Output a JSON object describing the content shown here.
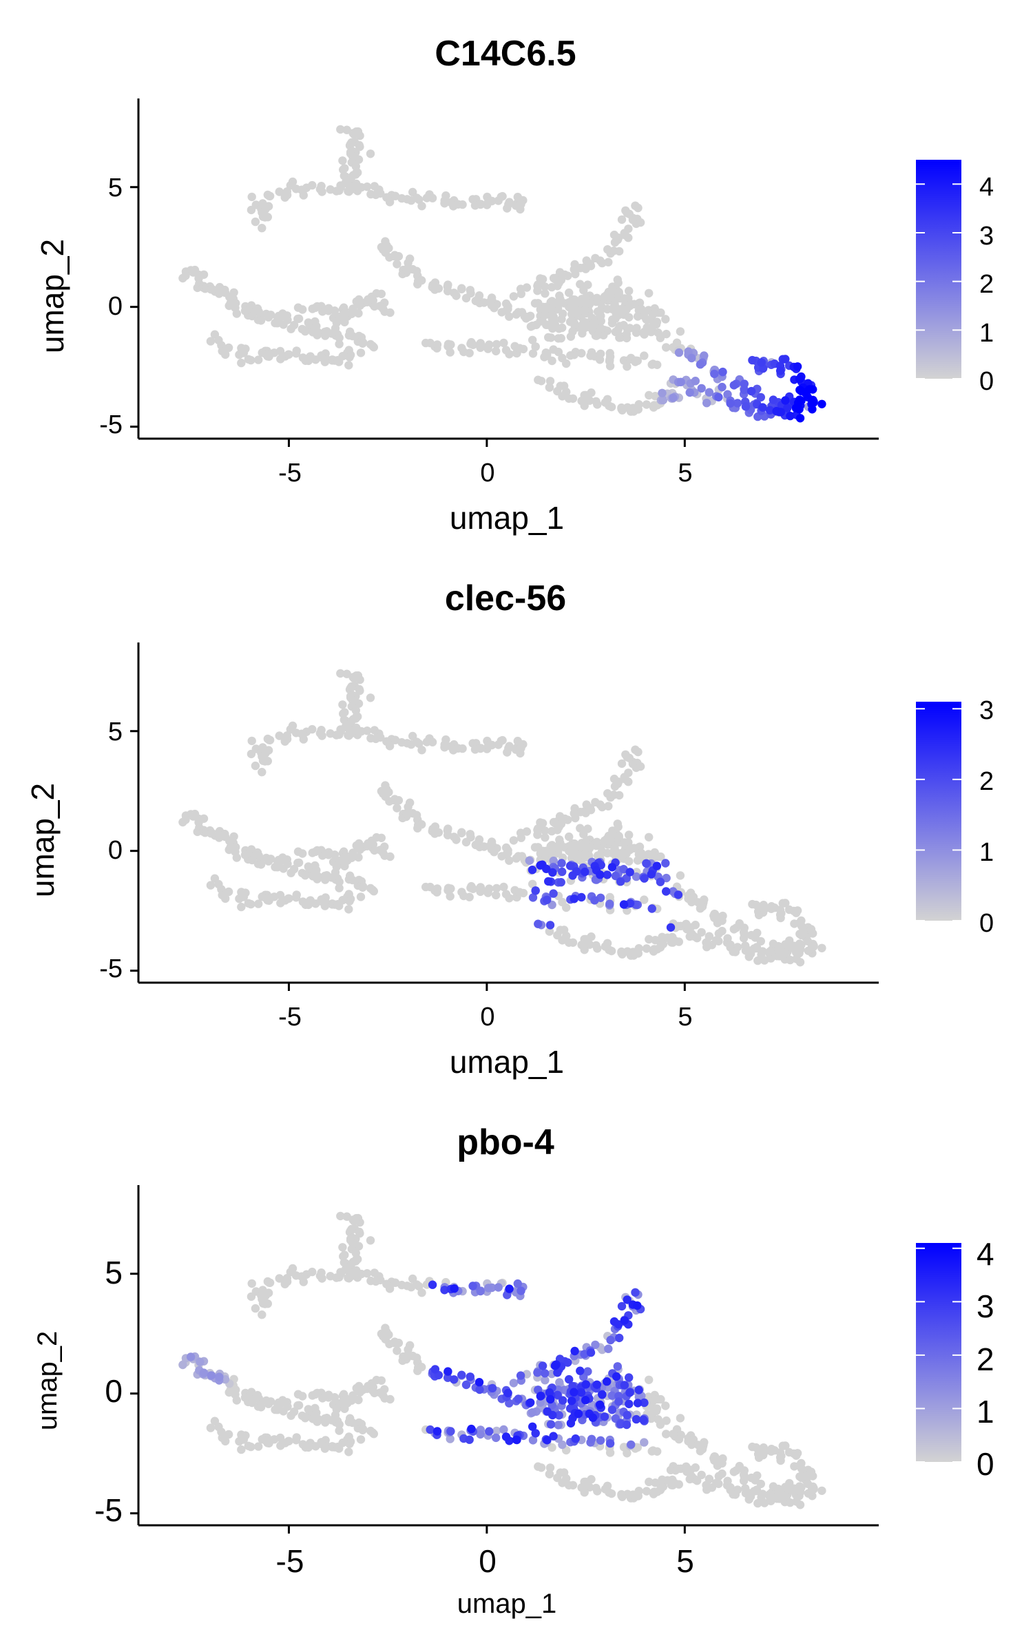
{
  "chart_data": [
    {
      "type": "scatter",
      "title": "C14C6.5",
      "xlabel": "umap_1",
      "ylabel": "umap_2",
      "xlim": [
        -8.8,
        9.9
      ],
      "ylim": [
        -5.5,
        8.7
      ],
      "xticks": [
        -5,
        0,
        5
      ],
      "yticks": [
        -5,
        0,
        5
      ],
      "xtick_labels": [
        "-5",
        "0",
        "5"
      ],
      "ytick_labels": [
        "-5",
        "0",
        "5"
      ],
      "grid": false,
      "legend": {
        "position": "right",
        "min": 0,
        "max": 4.5,
        "ticks": [
          0,
          1,
          2,
          3,
          4
        ],
        "tick_labels": [
          "0",
          "1",
          "2",
          "3",
          "4"
        ]
      },
      "colors": {
        "low": "#d3d3d3",
        "high": "#0000ff"
      },
      "highlight_region": "lower-right arc (umap_1 4.5 to 8.5, umap_2 -2 to -4.7)"
    },
    {
      "type": "scatter",
      "title": "clec-56",
      "xlabel": "umap_1",
      "ylabel": "umap_2",
      "xlim": [
        -8.8,
        9.9
      ],
      "ylim": [
        -5.5,
        8.7
      ],
      "xticks": [
        -5,
        0,
        5
      ],
      "yticks": [
        -5,
        0,
        5
      ],
      "xtick_labels": [
        "-5",
        "0",
        "5"
      ],
      "ytick_labels": [
        "-5",
        "0",
        "5"
      ],
      "grid": false,
      "legend": {
        "position": "right",
        "min": 0,
        "max": 3.1,
        "ticks": [
          0,
          1,
          2,
          3
        ],
        "tick_labels": [
          "0",
          "1",
          "2",
          "3"
        ]
      },
      "colors": {
        "low": "#d3d3d3",
        "high": "#0000ff"
      },
      "highlight_region": "central band (umap_1 1 to 5, umap_2 -0.5 to -3)"
    },
    {
      "type": "scatter",
      "title": "pbo-4",
      "xlabel": "umap_1",
      "ylabel": "umap_2",
      "xlim": [
        -8.8,
        9.9
      ],
      "ylim": [
        -5.5,
        8.7
      ],
      "xticks": [
        -5,
        0,
        5
      ],
      "yticks": [
        -5,
        0,
        5
      ],
      "xtick_labels": [
        "-5",
        "0",
        "5"
      ],
      "ytick_labels": [
        "-5",
        "0",
        "5"
      ],
      "grid": false,
      "legend": {
        "position": "right",
        "min": 0,
        "max": 4.1,
        "ticks": [
          0,
          1,
          2,
          3,
          4
        ],
        "tick_labels": [
          "0",
          "1",
          "2",
          "3",
          "4"
        ]
      },
      "colors": {
        "low": "#d3d3d3",
        "high": "#0000ff"
      },
      "highlight_region": "upper-central triangle (umap_1 -1.5 to 4, umap_2 -2 to 4.5)"
    }
  ]
}
